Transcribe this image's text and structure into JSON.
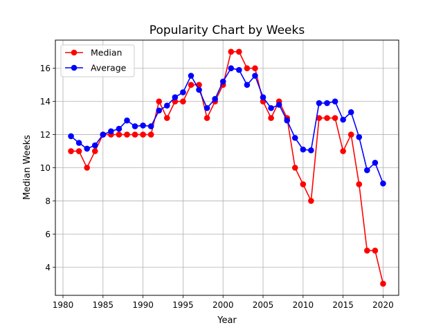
{
  "chart_data": {
    "type": "line",
    "title": "Popularity Chart by Weeks",
    "xlabel": "Year",
    "ylabel": "Median Weeks",
    "xlim": [
      1979.05,
      2021.95
    ],
    "ylim": [
      2.3,
      17.7
    ],
    "x_ticks": [
      1980,
      1985,
      1990,
      1995,
      2000,
      2005,
      2010,
      2015,
      2020
    ],
    "y_ticks": [
      4,
      6,
      8,
      10,
      12,
      14,
      16
    ],
    "grid": true,
    "legend_position": "top-left",
    "x": [
      1981,
      1982,
      1983,
      1984,
      1985,
      1986,
      1987,
      1988,
      1989,
      1990,
      1991,
      1992,
      1993,
      1994,
      1995,
      1996,
      1997,
      1998,
      1999,
      2000,
      2001,
      2002,
      2003,
      2004,
      2005,
      2006,
      2007,
      2008,
      2009,
      2010,
      2011,
      2012,
      2013,
      2014,
      2015,
      2016,
      2017,
      2018,
      2019,
      2020
    ],
    "series": [
      {
        "name": "Median",
        "color": "#ff0000",
        "values": [
          11,
          11,
          10,
          11,
          12,
          12,
          12,
          12,
          12,
          12,
          12,
          14,
          13,
          14,
          14,
          15,
          15,
          13,
          14,
          15,
          17,
          17,
          16,
          16,
          14,
          13,
          14,
          13,
          10,
          9,
          8,
          13,
          13,
          13,
          11,
          12,
          9,
          5,
          5,
          3
        ]
      },
      {
        "name": "Average",
        "color": "#0000ff",
        "values": [
          11.9,
          11.5,
          11.15,
          11.35,
          12.0,
          12.2,
          12.35,
          12.85,
          12.5,
          12.55,
          12.5,
          13.45,
          13.75,
          14.25,
          14.55,
          15.55,
          14.7,
          13.6,
          14.15,
          15.2,
          16.0,
          15.9,
          15.0,
          15.55,
          14.25,
          13.6,
          13.8,
          12.85,
          11.8,
          11.1,
          11.05,
          13.9,
          13.9,
          14.0,
          12.9,
          13.35,
          11.85,
          9.85,
          10.3,
          9.05
        ]
      }
    ]
  }
}
